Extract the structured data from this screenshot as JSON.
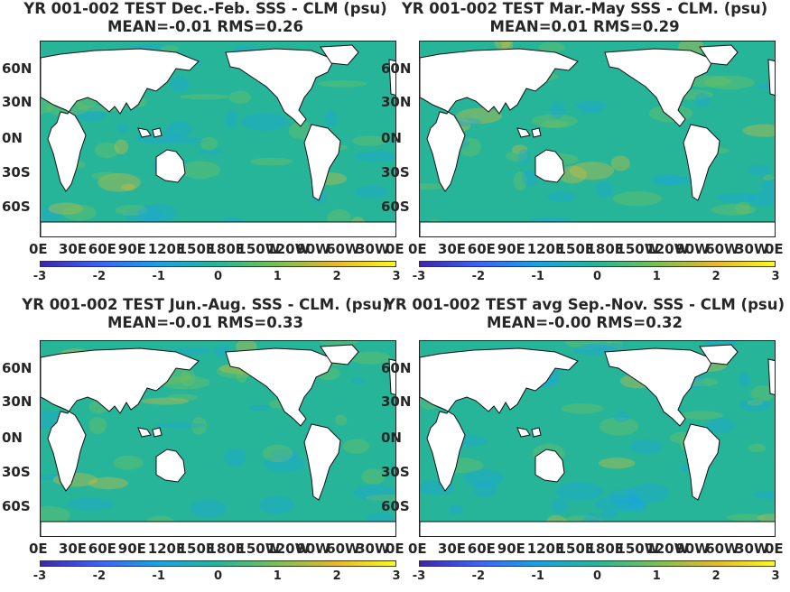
{
  "chart_data": [
    {
      "type": "heatmap",
      "title": "YR 001-002 TEST  Dec.-Feb. SSS - CLM (psu)",
      "subtitle": "MEAN=-0.01   RMS=0.26",
      "lat_ticks": [
        "60N",
        "30N",
        "0N",
        "30S",
        "60S"
      ],
      "lon_ticks": [
        "0E",
        "30E",
        "60E",
        "90E",
        "120E",
        "150E",
        "180E",
        "150W",
        "120W",
        "90W",
        "60W",
        "30W",
        "0E"
      ],
      "colorbar_ticks": [
        "-3",
        "-2",
        "-1",
        "0",
        "1",
        "2",
        "3"
      ],
      "colorbar_range": [
        -3,
        3
      ]
    },
    {
      "type": "heatmap",
      "title": "YR 001-002 TEST Mar.-May SSS - CLM. (psu)",
      "subtitle": "MEAN=0.01   RMS=0.29",
      "lat_ticks": [
        "60N",
        "30N",
        "0N",
        "30S",
        "60S"
      ],
      "lon_ticks": [
        "0E",
        "30E",
        "60E",
        "90E",
        "120E",
        "150E",
        "180E",
        "150W",
        "120W",
        "90W",
        "60W",
        "30W",
        "0E"
      ],
      "colorbar_ticks": [
        "-3",
        "-2",
        "-1",
        "0",
        "1",
        "2",
        "3"
      ],
      "colorbar_range": [
        -3,
        3
      ]
    },
    {
      "type": "heatmap",
      "title": "YR 001-002 TEST Jun.-Aug. SSS - CLM. (psu)",
      "subtitle": "MEAN=-0.01   RMS=0.33",
      "lat_ticks": [
        "60N",
        "30N",
        "0N",
        "30S",
        "60S"
      ],
      "lon_ticks": [
        "0E",
        "30E",
        "60E",
        "90E",
        "120E",
        "150E",
        "180E",
        "150W",
        "120W",
        "90W",
        "60W",
        "30W",
        "0E"
      ],
      "colorbar_ticks": [
        "-3",
        "-2",
        "-1",
        "0",
        "1",
        "2",
        "3"
      ],
      "colorbar_range": [
        -3,
        3
      ]
    },
    {
      "type": "heatmap",
      "title": "YR 001-002 TEST avg Sep.-Nov. SSS - CLM (psu)",
      "subtitle": "MEAN=-0.00   RMS=0.32",
      "lat_ticks": [
        "60N",
        "30N",
        "0N",
        "30S",
        "60S"
      ],
      "lon_ticks": [
        "0E",
        "30E",
        "60E",
        "90E",
        "120E",
        "150E",
        "180E",
        "150W",
        "120W",
        "90W",
        "60W",
        "30W",
        "0E"
      ],
      "colorbar_ticks": [
        "-3",
        "-2",
        "-1",
        "0",
        "1",
        "2",
        "3"
      ],
      "colorbar_range": [
        -3,
        3
      ]
    }
  ],
  "colors": {
    "ocean": "#27b59a",
    "land": "#ffffff",
    "colormap": [
      "#3e26a8",
      "#3e63f6",
      "#1aa3e2",
      "#27b59a",
      "#7abf57",
      "#e6b92b",
      "#f9f91e"
    ]
  }
}
